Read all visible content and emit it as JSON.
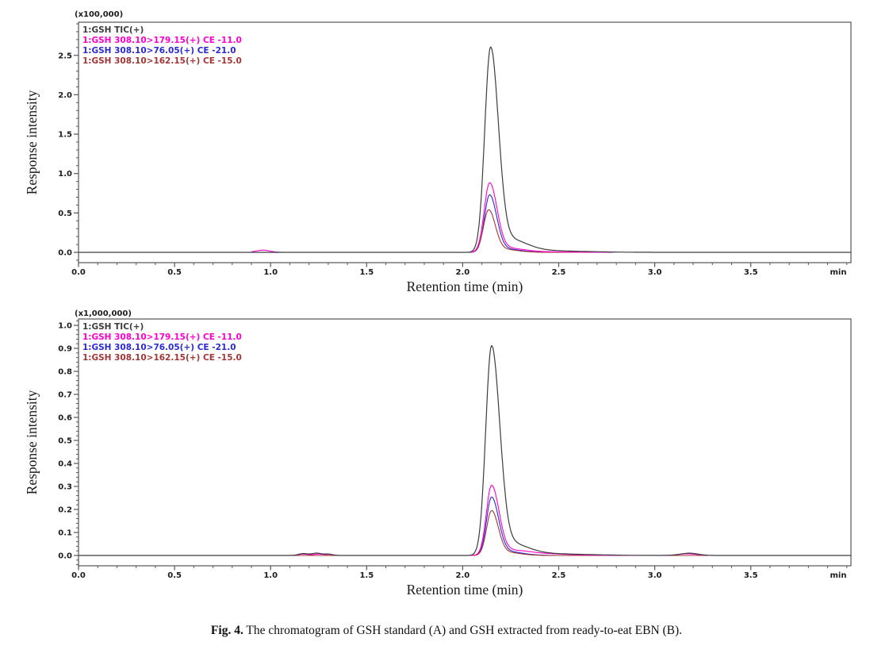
{
  "page": {
    "background": "#ffffff"
  },
  "caption": {
    "label": "Fig. 4.",
    "text": " The chromatogram of GSH standard (A) and GSH extracted from ready-to-eat EBN (B)."
  },
  "colors": {
    "tic": "#3c3c3c",
    "magenta": "#ff00cc",
    "blue": "#2a2ad4",
    "dark_red": "#a23535",
    "axis": "#555555",
    "tick_text": "#1c1c1c"
  },
  "chart_data": [
    {
      "id": "A",
      "type": "line",
      "title": "",
      "scale_label": "(x100,000)",
      "xlabel": "Retention time (min)",
      "ylabel": "Response intensity",
      "x_unit_label": "min",
      "axes": {
        "xlim": [
          0,
          4.022
        ],
        "ylim": [
          -0.131,
          2.92
        ],
        "x_ticks": [
          0.0,
          0.5,
          1.0,
          1.5,
          2.0,
          2.5,
          3.0,
          3.5
        ],
        "x_minor_step": 0.1,
        "y_ticks": [
          0.0,
          0.5,
          1.0,
          1.5,
          2.0,
          2.5
        ],
        "y_minor_step": 0.1,
        "grid": false
      },
      "legend_position": "top-left-inside",
      "series": [
        {
          "label": "1:GSH TIC(+)",
          "color": "#3c3c3c",
          "z": 4,
          "width": 1.2,
          "range": [
            0,
            4.022
          ],
          "peaks": [
            {
              "c": 2.145,
              "h": 2.57,
              "wl": 0.03,
              "wr": 0.04
            },
            {
              "c": 2.225,
              "h": 0.17,
              "wl": 0.045,
              "wr": 0.095
            },
            {
              "c": 2.38,
              "h": 0.022,
              "wl": 0.1,
              "wr": 0.22
            }
          ],
          "peak_retention_min": 2.14,
          "peak_height": 2.57
        },
        {
          "label": "1:GSH 308.10>179.15(+) CE -11.0",
          "color": "#ff00cc",
          "z": 3,
          "width": 1.1,
          "range": [
            0.9,
            2.78
          ],
          "peaks": [
            {
              "c": 0.96,
              "h": 0.028,
              "wl": 0.035,
              "wr": 0.035
            },
            {
              "c": 2.14,
              "h": 0.87,
              "wl": 0.028,
              "wr": 0.038
            },
            {
              "c": 2.21,
              "h": 0.055,
              "wl": 0.04,
              "wr": 0.09
            },
            {
              "c": 2.34,
              "h": 0.008,
              "wl": 0.08,
              "wr": 0.18
            }
          ],
          "peak_retention_min": 2.14,
          "peak_height": 0.87
        },
        {
          "label": "1:GSH 308.10>76.05(+) CE -21.0",
          "color": "#2a2ad4",
          "z": 1,
          "width": 1.1,
          "range": [
            0.98,
            2.78
          ],
          "peaks": [
            {
              "c": 2.14,
              "h": 0.72,
              "wl": 0.027,
              "wr": 0.036
            },
            {
              "c": 2.21,
              "h": 0.045,
              "wl": 0.04,
              "wr": 0.085
            }
          ],
          "peak_retention_min": 2.14,
          "peak_height": 0.72
        },
        {
          "label": "1:GSH 308.10>162.15(+) CE -15.0",
          "color": "#a23535",
          "z": 2,
          "width": 1.1,
          "range": [
            0.98,
            2.78
          ],
          "peaks": [
            {
              "c": 2.135,
              "h": 0.53,
              "wl": 0.027,
              "wr": 0.034
            },
            {
              "c": 2.2,
              "h": 0.04,
              "wl": 0.04,
              "wr": 0.08
            }
          ],
          "peak_retention_min": 2.14,
          "peak_height": 0.53
        }
      ]
    },
    {
      "id": "B",
      "type": "line",
      "title": "",
      "scale_label": "(x1,000,000)",
      "xlabel": "Retention time (min)",
      "ylabel": "Response intensity",
      "x_unit_label": "min",
      "axes": {
        "xlim": [
          0,
          4.022
        ],
        "ylim": [
          -0.045,
          1.028
        ],
        "x_ticks": [
          0.0,
          0.5,
          1.0,
          1.5,
          2.0,
          2.5,
          3.0,
          3.5
        ],
        "x_minor_step": 0.1,
        "y_ticks": [
          0.0,
          0.1,
          0.2,
          0.3,
          0.4,
          0.5,
          0.6,
          0.7,
          0.8,
          0.9,
          1.0
        ],
        "y_minor_step": 0.02,
        "grid": false
      },
      "legend_position": "top-left-inside",
      "series": [
        {
          "label": "1:GSH TIC(+)",
          "color": "#3c3c3c",
          "z": 4,
          "width": 1.2,
          "range": [
            0,
            4.022
          ],
          "peaks": [
            {
              "c": 2.15,
              "h": 0.9,
              "wl": 0.03,
              "wr": 0.042
            },
            {
              "c": 2.23,
              "h": 0.055,
              "wl": 0.045,
              "wr": 0.095
            },
            {
              "c": 2.4,
              "h": 0.008,
              "wl": 0.1,
              "wr": 0.22
            },
            {
              "c": 1.17,
              "h": 0.008,
              "wl": 0.025,
              "wr": 0.025
            },
            {
              "c": 1.24,
              "h": 0.01,
              "wl": 0.025,
              "wr": 0.025
            },
            {
              "c": 1.3,
              "h": 0.006,
              "wl": 0.02,
              "wr": 0.02
            },
            {
              "c": 3.18,
              "h": 0.01,
              "wl": 0.045,
              "wr": 0.045
            }
          ],
          "peak_retention_min": 2.15,
          "peak_height": 0.9
        },
        {
          "label": "1:GSH 308.10>179.15(+) CE -11.0",
          "color": "#ff00cc",
          "z": 3,
          "width": 1.1,
          "range": [
            1.05,
            3.28
          ],
          "peaks": [
            {
              "c": 2.15,
              "h": 0.3,
              "wl": 0.027,
              "wr": 0.038
            },
            {
              "c": 2.22,
              "h": 0.022,
              "wl": 0.04,
              "wr": 0.09
            },
            {
              "c": 2.36,
              "h": 0.009,
              "wl": 0.07,
              "wr": 0.16
            },
            {
              "c": 1.17,
              "h": 0.006,
              "wl": 0.025,
              "wr": 0.025
            },
            {
              "c": 1.25,
              "h": 0.006,
              "wl": 0.025,
              "wr": 0.025
            },
            {
              "c": 1.31,
              "h": 0.004,
              "wl": 0.02,
              "wr": 0.02
            },
            {
              "c": 3.17,
              "h": 0.007,
              "wl": 0.05,
              "wr": 0.05
            }
          ],
          "peak_retention_min": 2.15,
          "peak_height": 0.3
        },
        {
          "label": "1:GSH 308.10>76.05(+) CE -21.0",
          "color": "#2a2ad4",
          "z": 1,
          "width": 1.1,
          "range": [
            1.05,
            3.28
          ],
          "peaks": [
            {
              "c": 2.15,
              "h": 0.25,
              "wl": 0.026,
              "wr": 0.036
            },
            {
              "c": 2.22,
              "h": 0.018,
              "wl": 0.04,
              "wr": 0.085
            }
          ],
          "peak_retention_min": 2.15,
          "peak_height": 0.25
        },
        {
          "label": "1:GSH 308.10>162.15(+) CE -15.0",
          "color": "#a23535",
          "z": 2,
          "width": 1.1,
          "range": [
            1.05,
            3.28
          ],
          "peaks": [
            {
              "c": 2.15,
              "h": 0.19,
              "wl": 0.026,
              "wr": 0.034
            },
            {
              "c": 2.21,
              "h": 0.015,
              "wl": 0.04,
              "wr": 0.08
            }
          ],
          "peak_retention_min": 2.15,
          "peak_height": 0.19
        }
      ]
    }
  ]
}
